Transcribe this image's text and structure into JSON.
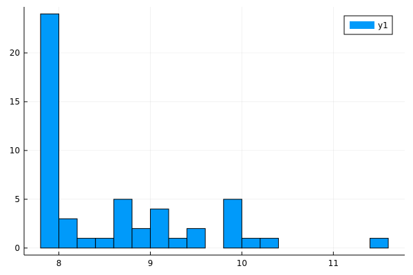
{
  "chart_data": {
    "type": "bar",
    "subtype": "histogram",
    "title": "",
    "xlabel": "",
    "ylabel": "",
    "bin_width": 0.2,
    "bins": [
      {
        "x0": 7.8,
        "x1": 8.0,
        "count": 24
      },
      {
        "x0": 8.0,
        "x1": 8.2,
        "count": 3
      },
      {
        "x0": 8.2,
        "x1": 8.4,
        "count": 1
      },
      {
        "x0": 8.4,
        "x1": 8.6,
        "count": 1
      },
      {
        "x0": 8.6,
        "x1": 8.8,
        "count": 5
      },
      {
        "x0": 8.8,
        "x1": 9.0,
        "count": 2
      },
      {
        "x0": 9.0,
        "x1": 9.2,
        "count": 4
      },
      {
        "x0": 9.2,
        "x1": 9.4,
        "count": 1
      },
      {
        "x0": 9.4,
        "x1": 9.6,
        "count": 2
      },
      {
        "x0": 9.6,
        "x1": 9.8,
        "count": 0
      },
      {
        "x0": 9.8,
        "x1": 10.0,
        "count": 5
      },
      {
        "x0": 10.0,
        "x1": 10.2,
        "count": 1
      },
      {
        "x0": 10.2,
        "x1": 10.4,
        "count": 1
      },
      {
        "x0": 10.4,
        "x1": 10.6,
        "count": 0
      },
      {
        "x0": 10.6,
        "x1": 10.8,
        "count": 0
      },
      {
        "x0": 10.8,
        "x1": 11.0,
        "count": 0
      },
      {
        "x0": 11.0,
        "x1": 11.2,
        "count": 0
      },
      {
        "x0": 11.2,
        "x1": 11.4,
        "count": 0
      },
      {
        "x0": 11.4,
        "x1": 11.6,
        "count": 1
      }
    ],
    "series": [
      {
        "name": "y1",
        "color": "#009AFA"
      }
    ],
    "xlim": [
      7.62,
      11.78
    ],
    "ylim": [
      -0.72,
      24.72
    ],
    "x_ticks": [
      8,
      9,
      10,
      11
    ],
    "y_ticks": [
      0,
      5,
      10,
      15,
      20
    ],
    "grid": true,
    "legend_position": "top-right"
  }
}
